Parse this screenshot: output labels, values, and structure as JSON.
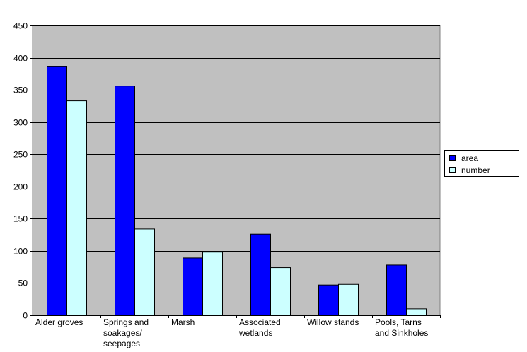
{
  "chart_data": {
    "type": "bar",
    "categories": [
      "Alder groves",
      "Springs and soakages/ seepages",
      "Marsh",
      "Associated wetlands",
      "Willow stands",
      "Pools, Tarns and Sinkholes"
    ],
    "category_lines": [
      [
        "Alder groves"
      ],
      [
        "Springs and",
        "soakages/",
        "seepages"
      ],
      [
        "Marsh"
      ],
      [
        "Associated",
        "wetlands"
      ],
      [
        "Willow stands"
      ],
      [
        "Pools, Tarns",
        "and Sinkholes"
      ]
    ],
    "series": [
      {
        "name": "area",
        "values": [
          386,
          356,
          89,
          126,
          47,
          78
        ],
        "color": "#0000ff"
      },
      {
        "name": "number",
        "values": [
          333,
          134,
          98,
          74,
          48,
          10
        ],
        "color": "#ccffff"
      }
    ],
    "ylim": [
      0,
      450
    ],
    "yticks": [
      "0",
      "50",
      "100",
      "150",
      "200",
      "250",
      "300",
      "350",
      "400",
      "450"
    ],
    "plot_background": "#c0c0c0",
    "grid": true,
    "legend_position": "right",
    "title": "",
    "xlabel": "",
    "ylabel": ""
  }
}
